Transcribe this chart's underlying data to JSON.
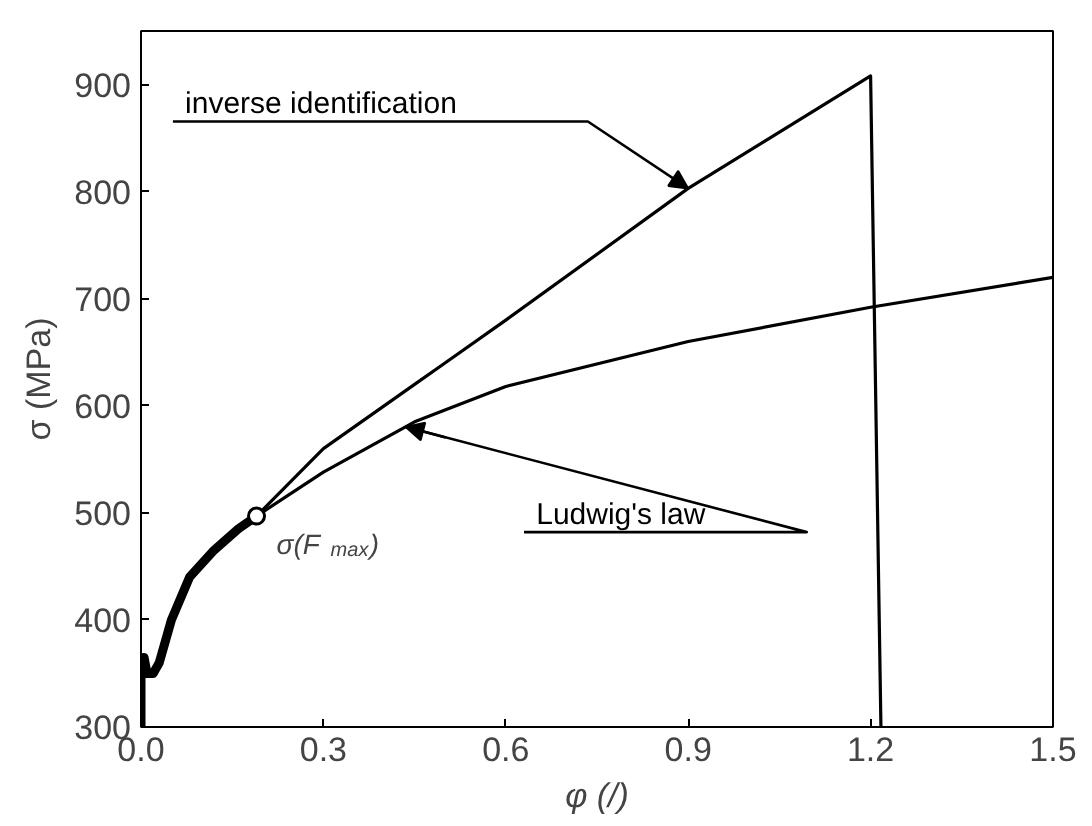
{
  "chart_data": {
    "type": "line",
    "xlabel": "φ (/)",
    "ylabel": "σ (MPa)",
    "xlim": [
      0,
      1.5
    ],
    "ylim": [
      300,
      950
    ],
    "xticks": [
      {
        "value": 0,
        "label": "0.0"
      },
      0.3,
      0.6,
      0.9,
      1.2,
      1.5
    ],
    "yticks": [
      300,
      400,
      500,
      600,
      700,
      800,
      900
    ],
    "grid": false,
    "line_style": "solid",
    "marker": "none",
    "series": [
      {
        "color": "#000000",
        "x": [
          0,
          0,
          0.005,
          0.01,
          0.02,
          0.03,
          0.05,
          0.08,
          0.12,
          0.16,
          0.19
        ],
        "values": [
          300,
          360,
          365,
          350,
          350,
          360,
          400,
          440,
          465,
          485,
          497
        ]
      },
      {
        "name": "inverse identification",
        "color": "#000000",
        "x": [
          0.19,
          0.3,
          0.45,
          0.5,
          0.6,
          0.9,
          1.2,
          1.217
        ],
        "values": [
          497,
          560,
          620,
          640,
          680,
          803,
          908,
          300
        ]
      },
      {
        "name": "Ludwig's law",
        "color": "#000000",
        "x": [
          0.19,
          0.3,
          0.45,
          0.6,
          0.9,
          1.2,
          1.5
        ],
        "values": [
          497,
          538,
          585,
          618,
          660,
          692,
          720
        ]
      }
    ],
    "annotations": [
      {
        "text": "σ(F$_{max}$)",
        "x": 0.19,
        "y": 497
      }
    ]
  }
}
